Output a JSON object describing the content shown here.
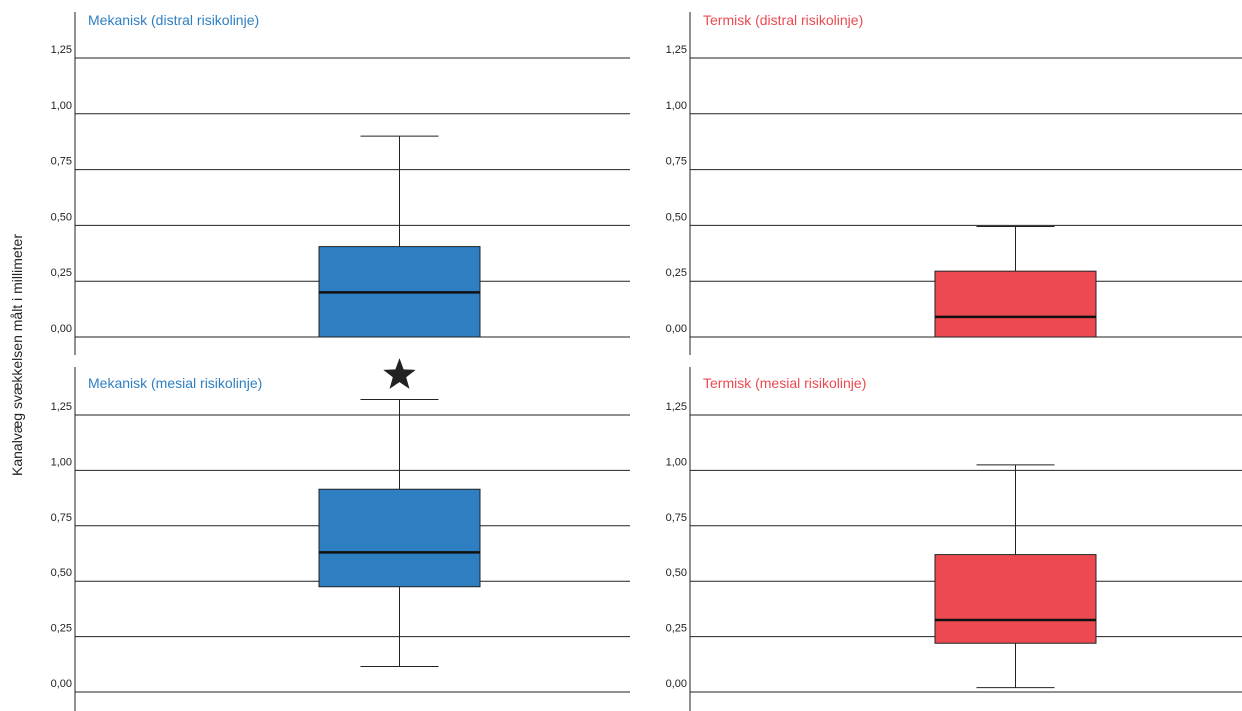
{
  "chart_data": {
    "type": "box",
    "ylabel": "Kanalvæg svækkelsen målt i millimeter",
    "ylim": [
      0,
      1.25
    ],
    "yticks": [
      0,
      0.25,
      0.5,
      0.75,
      1.0,
      1.25
    ],
    "ytick_labels": [
      "0,00",
      "0,25",
      "0,50",
      "0,75",
      "1,00",
      "1,25"
    ],
    "grid": true,
    "colors": {
      "mekanisk": "#2e7fc2",
      "termisk": "#ec4a50"
    },
    "panels": [
      {
        "title": "Mekanisk (distral risikolinje)",
        "color": "#2e7fc2",
        "box": {
          "whisker_low": 0.0,
          "q1": 0.0,
          "median": 0.2,
          "q3": 0.405,
          "whisker_high": 0.9
        }
      },
      {
        "title": "Termisk (distral risikolinje)",
        "color": "#ec4a50",
        "box": {
          "whisker_low": 0.0,
          "q1": 0.0,
          "median": 0.09,
          "q3": 0.295,
          "whisker_high": 0.495
        }
      },
      {
        "title": "Mekanisk (mesial risikolinje)",
        "color": "#2e7fc2",
        "box": {
          "whisker_low": 0.115,
          "q1": 0.475,
          "median": 0.63,
          "q3": 0.915,
          "whisker_high": 1.32
        },
        "outlier": {
          "value": 1.43,
          "marker": "star"
        }
      },
      {
        "title": "Termisk (mesial risikolinje)",
        "color": "#ec4a50",
        "box": {
          "whisker_low": 0.02,
          "q1": 0.22,
          "median": 0.325,
          "q3": 0.62,
          "whisker_high": 1.025
        }
      }
    ]
  }
}
